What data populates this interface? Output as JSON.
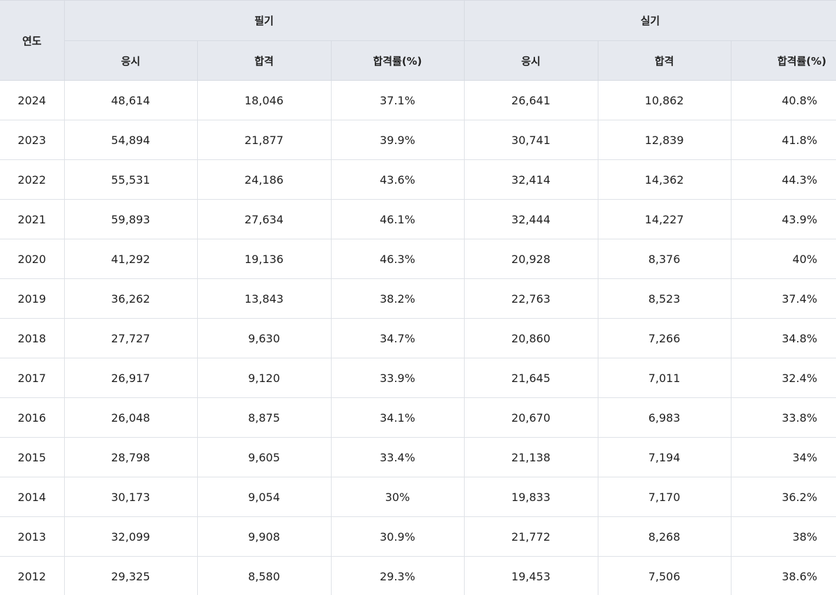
{
  "header": {
    "year": "연도",
    "written": "필기",
    "practical": "실기",
    "applicants": "응시",
    "passed": "합격",
    "pass_rate": "합격률(%)"
  },
  "rows": [
    {
      "year": "2024",
      "w_app": "48,614",
      "w_pass": "18,046",
      "w_rate": "37.1%",
      "p_app": "26,641",
      "p_pass": "10,862",
      "p_rate": "40.8%"
    },
    {
      "year": "2023",
      "w_app": "54,894",
      "w_pass": "21,877",
      "w_rate": "39.9%",
      "p_app": "30,741",
      "p_pass": "12,839",
      "p_rate": "41.8%"
    },
    {
      "year": "2022",
      "w_app": "55,531",
      "w_pass": "24,186",
      "w_rate": "43.6%",
      "p_app": "32,414",
      "p_pass": "14,362",
      "p_rate": "44.3%"
    },
    {
      "year": "2021",
      "w_app": "59,893",
      "w_pass": "27,634",
      "w_rate": "46.1%",
      "p_app": "32,444",
      "p_pass": "14,227",
      "p_rate": "43.9%"
    },
    {
      "year": "2020",
      "w_app": "41,292",
      "w_pass": "19,136",
      "w_rate": "46.3%",
      "p_app": "20,928",
      "p_pass": "8,376",
      "p_rate": "40%"
    },
    {
      "year": "2019",
      "w_app": "36,262",
      "w_pass": "13,843",
      "w_rate": "38.2%",
      "p_app": "22,763",
      "p_pass": "8,523",
      "p_rate": "37.4%"
    },
    {
      "year": "2018",
      "w_app": "27,727",
      "w_pass": "9,630",
      "w_rate": "34.7%",
      "p_app": "20,860",
      "p_pass": "7,266",
      "p_rate": "34.8%"
    },
    {
      "year": "2017",
      "w_app": "26,917",
      "w_pass": "9,120",
      "w_rate": "33.9%",
      "p_app": "21,645",
      "p_pass": "7,011",
      "p_rate": "32.4%"
    },
    {
      "year": "2016",
      "w_app": "26,048",
      "w_pass": "8,875",
      "w_rate": "34.1%",
      "p_app": "20,670",
      "p_pass": "6,983",
      "p_rate": "33.8%"
    },
    {
      "year": "2015",
      "w_app": "28,798",
      "w_pass": "9,605",
      "w_rate": "33.4%",
      "p_app": "21,138",
      "p_pass": "7,194",
      "p_rate": "34%"
    },
    {
      "year": "2014",
      "w_app": "30,173",
      "w_pass": "9,054",
      "w_rate": "30%",
      "p_app": "19,833",
      "p_pass": "7,170",
      "p_rate": "36.2%"
    },
    {
      "year": "2013",
      "w_app": "32,099",
      "w_pass": "9,908",
      "w_rate": "30.9%",
      "p_app": "21,772",
      "p_pass": "8,268",
      "p_rate": "38%"
    },
    {
      "year": "2012",
      "w_app": "29,325",
      "w_pass": "8,580",
      "w_rate": "29.3%",
      "p_app": "19,453",
      "p_pass": "7,506",
      "p_rate": "38.6%"
    }
  ]
}
